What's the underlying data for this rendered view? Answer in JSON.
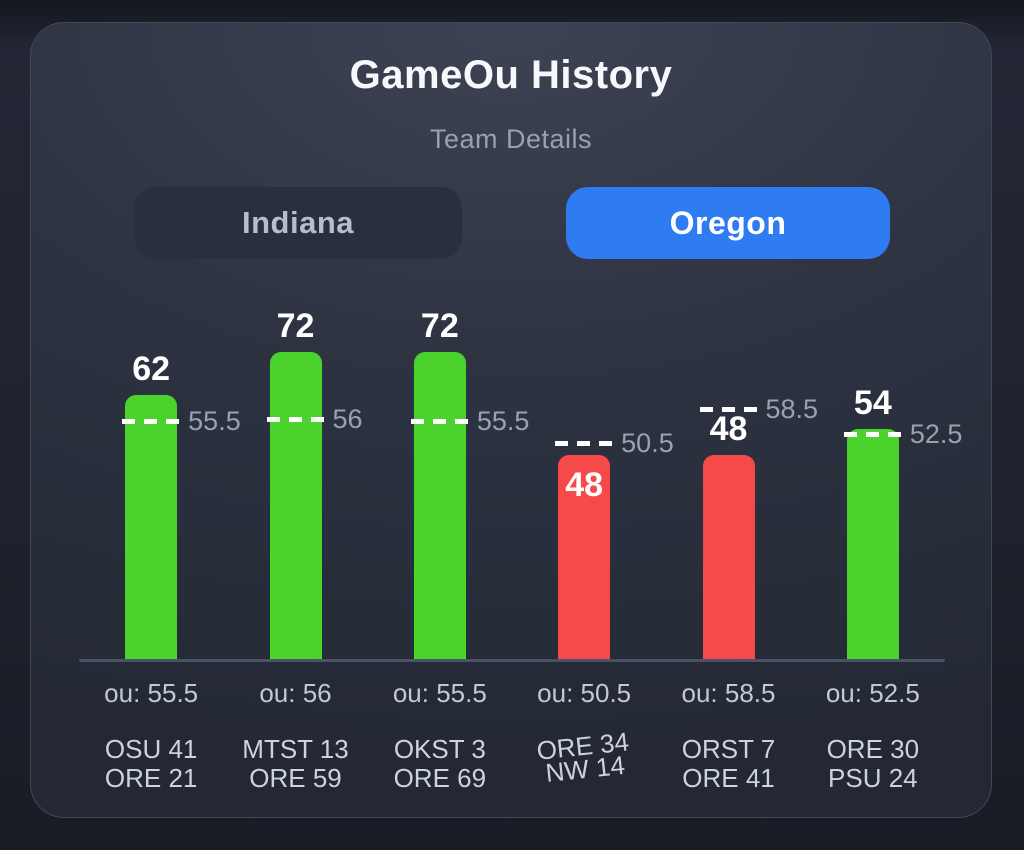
{
  "header": {
    "title": "GameOu History",
    "subtitle": "Team Details"
  },
  "team_toggle": {
    "options": [
      {
        "label": "Indiana",
        "selected": false
      },
      {
        "label": "Oregon",
        "selected": true
      }
    ],
    "selected_color": "#2e7bf2",
    "unselected_color": "#2a2f3d"
  },
  "chart_data": {
    "type": "bar",
    "title": "GameOu History",
    "subtitle": "Team Details",
    "selected_team": "Oregon",
    "ylim": [
      0,
      77
    ],
    "grid": false,
    "legend": false,
    "colors": {
      "over_bar": "#4ad22d",
      "under_bar": "#f6494a",
      "ou_line": "#ffffff",
      "axis": "#4a5267"
    },
    "games": [
      {
        "matchup_line1": "OSU 41",
        "matchup_line2": "ORE 21",
        "total_points": 62,
        "ou_line": 55.5,
        "ou_line_label": "55.5",
        "axis_label": "ou: 55.5",
        "result": "over",
        "label_tilted": false
      },
      {
        "matchup_line1": "MTST 13",
        "matchup_line2": "ORE 59",
        "total_points": 72,
        "ou_line": 56,
        "ou_line_label": "56",
        "axis_label": "ou: 56",
        "result": "over",
        "label_tilted": false
      },
      {
        "matchup_line1": "OKST 3",
        "matchup_line2": "ORE 69",
        "total_points": 72,
        "ou_line": 55.5,
        "ou_line_label": "55.5",
        "axis_label": "ou: 55.5",
        "result": "over",
        "label_tilted": false
      },
      {
        "matchup_line1": "ORE 34",
        "matchup_line2": "NW 14",
        "total_points": 48,
        "ou_line": 50.5,
        "ou_line_label": "50.5",
        "axis_label": "ou: 50.5",
        "result": "under",
        "label_tilted": true
      },
      {
        "matchup_line1": "ORST 7",
        "matchup_line2": "ORE 41",
        "total_points": 48,
        "ou_line": 58.5,
        "ou_line_label": "58.5",
        "axis_label": "ou: 58.5",
        "result": "under",
        "label_tilted": false
      },
      {
        "matchup_line1": "ORE 30",
        "matchup_line2": "PSU 24",
        "total_points": 54,
        "ou_line": 52.5,
        "ou_line_label": "52.5",
        "axis_label": "ou: 52.5",
        "result": "over",
        "label_tilted": false
      }
    ]
  }
}
